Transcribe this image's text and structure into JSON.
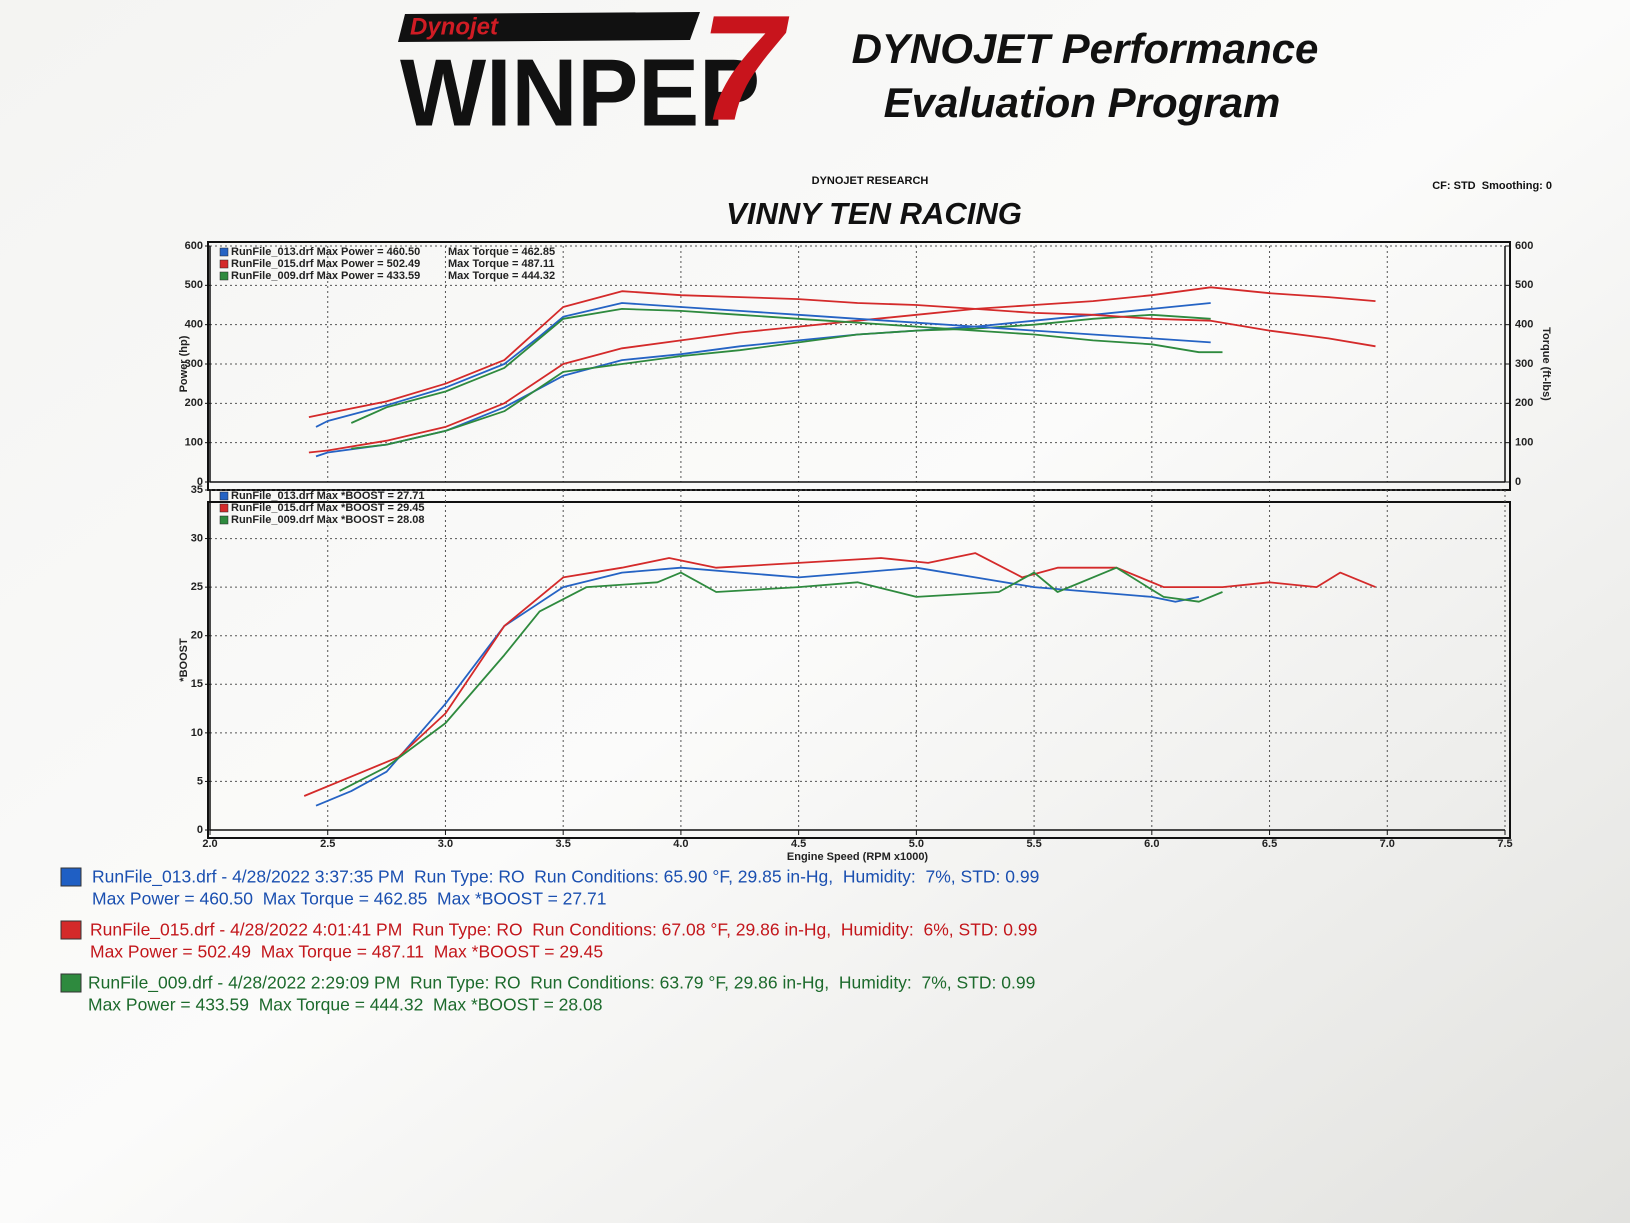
{
  "header": {
    "logo_brand": "Dynojet",
    "logo_main": "WINPEP",
    "logo_num": "7",
    "title_line1": "DYNOJET Performance",
    "title_line2": "Evaluation Program"
  },
  "report": {
    "company": "DYNOJET RESEARCH",
    "settings": "CF: STD  Smoothing: 0",
    "title": "VINNY TEN RACING"
  },
  "chart_data": [
    {
      "type": "line",
      "ylabel": "Power (hp)",
      "y2label": "Torque (ft-lbs)",
      "xlim": [
        2.0,
        7.5
      ],
      "ylim": [
        0,
        600
      ],
      "yticks": [
        0,
        100,
        200,
        300,
        400,
        500,
        600
      ],
      "y2lim": [
        0,
        600
      ],
      "y2ticks": [
        0,
        100,
        200,
        300,
        400,
        500,
        600
      ],
      "grid": true,
      "series": [
        {
          "name": "RunFile_013.drf Max Power = 460.50",
          "color": "#2563c4",
          "x": [
            2.45,
            2.5,
            2.75,
            3.0,
            3.25,
            3.5,
            3.75,
            4.0,
            4.25,
            4.5,
            4.75,
            5.0,
            5.25,
            5.5,
            5.75,
            6.0,
            6.25
          ],
          "values": [
            65,
            75,
            95,
            130,
            190,
            270,
            310,
            325,
            345,
            360,
            375,
            385,
            395,
            410,
            425,
            440,
            455
          ]
        },
        {
          "name": "RunFile_015.drf Max Power = 502.49",
          "color": "#d42a2a",
          "x": [
            2.42,
            2.5,
            2.75,
            3.0,
            3.25,
            3.5,
            3.75,
            4.0,
            4.25,
            4.5,
            4.75,
            5.0,
            5.25,
            5.5,
            5.75,
            6.0,
            6.25,
            6.5,
            6.75,
            6.95
          ],
          "values": [
            75,
            80,
            105,
            140,
            200,
            300,
            340,
            360,
            380,
            395,
            410,
            425,
            440,
            450,
            460,
            475,
            495,
            480,
            470,
            460
          ]
        },
        {
          "name": "RunFile_009.drf Max Power = 433.59",
          "color": "#2e8a3e",
          "x": [
            2.6,
            2.75,
            3.0,
            3.25,
            3.5,
            3.75,
            4.0,
            4.25,
            4.5,
            4.75,
            5.0,
            5.25,
            5.5,
            5.75,
            6.0,
            6.25
          ],
          "values": [
            85,
            95,
            130,
            180,
            280,
            300,
            320,
            335,
            355,
            375,
            385,
            390,
            400,
            415,
            425,
            415
          ]
        },
        {
          "name": "Max Torque = 462.85",
          "color": "#2563c4",
          "axis": "y2",
          "x": [
            2.45,
            2.5,
            2.75,
            3.0,
            3.25,
            3.4,
            3.5,
            3.75,
            4.0,
            4.25,
            4.5,
            4.75,
            5.0,
            5.25,
            5.5,
            5.75,
            6.0,
            6.25
          ],
          "values": [
            140,
            155,
            195,
            240,
            300,
            370,
            420,
            455,
            445,
            435,
            425,
            415,
            405,
            395,
            385,
            375,
            365,
            355
          ]
        },
        {
          "name": "Max Torque = 487.11",
          "color": "#d42a2a",
          "axis": "y2",
          "x": [
            2.42,
            2.5,
            2.75,
            3.0,
            3.25,
            3.5,
            3.75,
            4.0,
            4.25,
            4.5,
            4.75,
            5.0,
            5.25,
            5.5,
            5.75,
            6.0,
            6.25,
            6.5,
            6.75,
            6.95
          ],
          "values": [
            165,
            175,
            205,
            250,
            310,
            445,
            485,
            475,
            470,
            465,
            455,
            450,
            440,
            430,
            425,
            415,
            410,
            385,
            365,
            345
          ]
        },
        {
          "name": "Max Torque = 444.32",
          "color": "#2e8a3e",
          "axis": "y2",
          "x": [
            2.6,
            2.75,
            3.0,
            3.25,
            3.5,
            3.75,
            4.0,
            4.25,
            4.5,
            4.75,
            5.0,
            5.25,
            5.5,
            5.75,
            6.0,
            6.2,
            6.3
          ],
          "values": [
            150,
            190,
            230,
            290,
            415,
            440,
            435,
            425,
            415,
            405,
            395,
            385,
            375,
            360,
            350,
            330,
            330
          ]
        }
      ]
    },
    {
      "type": "line",
      "xlabel": "Engine Speed (RPM x1000)",
      "ylabel": "*BOOST",
      "xlim": [
        2.0,
        7.5
      ],
      "xticks": [
        {
          "value": 2,
          "label": "2.0"
        },
        2.5,
        {
          "value": 3,
          "label": "3.0"
        },
        3.5,
        {
          "value": 4,
          "label": "4.0"
        },
        4.5,
        {
          "value": 5,
          "label": "5.0"
        },
        5.5,
        {
          "value": 6,
          "label": "6.0"
        },
        6.5,
        {
          "value": 7,
          "label": "7.0"
        },
        7.5
      ],
      "ylim": [
        0,
        35
      ],
      "yticks": [
        0,
        5,
        10,
        15,
        20,
        25,
        30,
        35
      ],
      "grid": true,
      "series": [
        {
          "name": "RunFile_013.drf Max *BOOST = 27.71",
          "color": "#2563c4",
          "x": [
            2.45,
            2.6,
            2.75,
            3.0,
            3.25,
            3.5,
            3.75,
            4.0,
            4.25,
            4.5,
            4.75,
            5.0,
            5.25,
            5.5,
            5.75,
            6.0,
            6.1,
            6.2
          ],
          "values": [
            2.5,
            4,
            6,
            13,
            21,
            25,
            26.5,
            27,
            26.5,
            26,
            26.5,
            27,
            26,
            25,
            24.5,
            24,
            23.5,
            24
          ]
        },
        {
          "name": "RunFile_015.drf Max *BOOST = 29.45",
          "color": "#d42a2a",
          "x": [
            2.4,
            2.6,
            2.8,
            3.0,
            3.25,
            3.5,
            3.75,
            3.95,
            4.15,
            4.5,
            4.85,
            5.05,
            5.25,
            5.45,
            5.6,
            5.85,
            6.05,
            6.3,
            6.5,
            6.7,
            6.8,
            6.95
          ],
          "values": [
            3.5,
            5.5,
            7.5,
            12,
            21,
            26,
            27,
            28,
            27,
            27.5,
            28,
            27.5,
            28.5,
            26,
            27,
            27,
            25,
            25,
            25.5,
            25,
            26.5,
            25
          ]
        },
        {
          "name": "RunFile_009.drf Max *BOOST = 28.08",
          "color": "#2e8a3e",
          "x": [
            2.55,
            2.75,
            3.0,
            3.25,
            3.4,
            3.6,
            3.9,
            4.0,
            4.15,
            4.5,
            4.75,
            5.0,
            5.35,
            5.5,
            5.6,
            5.85,
            6.05,
            6.2,
            6.3
          ],
          "values": [
            4,
            6.5,
            11,
            18,
            22.5,
            25,
            25.5,
            26.5,
            24.5,
            25,
            25.5,
            24,
            24.5,
            26.5,
            24.5,
            27,
            24,
            23.5,
            24.5
          ]
        }
      ]
    }
  ],
  "runs": [
    {
      "color": "#1a4fb0",
      "swatch": "#1f5fc4",
      "line1": "RunFile_013.drf - 4/28/2022 3:37:35 PM  Run Type: RO  Run Conditions: 65.90 °F, 29.85 in-Hg,  Humidity:  7%, STD: 0.99",
      "line2": "Max Power = 460.50  Max Torque = 462.85  Max *BOOST = 27.71"
    },
    {
      "color": "#c3161b",
      "swatch": "#d42a2a",
      "line1": "RunFile_015.drf - 4/28/2022 4:01:41 PM  Run Type: RO  Run Conditions: 67.08 °F, 29.86 in-Hg,  Humidity:  6%, STD: 0.99",
      "line2": "Max Power = 502.49  Max Torque = 487.11  Max *BOOST = 29.45"
    },
    {
      "color": "#1c6a2c",
      "swatch": "#2e8a3e",
      "line1": "RunFile_009.drf - 4/28/2022 2:29:09 PM  Run Type: RO  Run Conditions: 63.79 °F, 29.86 in-Hg,  Humidity:  7%, STD: 0.99",
      "line2": "Max Power = 433.59  Max Torque = 444.32  Max *BOOST = 28.08"
    }
  ]
}
